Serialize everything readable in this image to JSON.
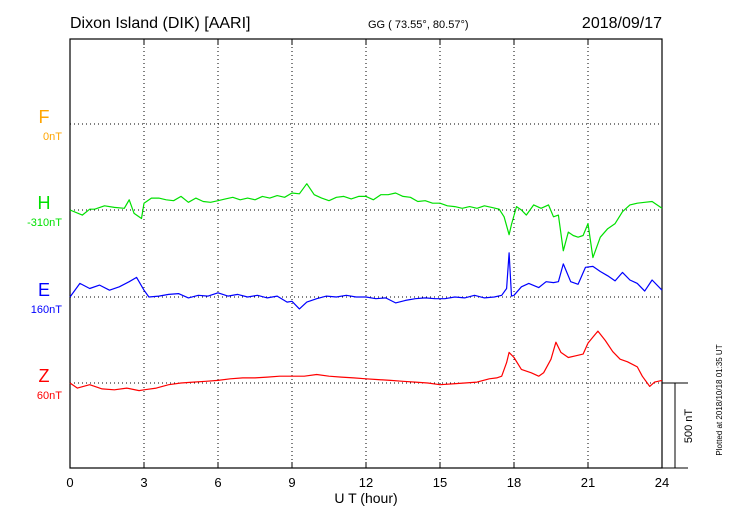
{
  "header": {
    "station": "Dixon Island (DIK)  [AARI]",
    "coords": "GG ( 73.55°,  80.57°)",
    "date": "2018/09/17"
  },
  "footer_note": "Plotted at 2018/10/18 01:35 UT",
  "chart_data": {
    "type": "line",
    "xlabel": "U T (hour)",
    "xlim": [
      0,
      24
    ],
    "xticks": [
      "0",
      "3",
      "6",
      "9",
      "12",
      "15",
      "18",
      "21",
      "24"
    ],
    "grid": true,
    "scale_bar": "500 nT",
    "series": [
      {
        "name": "F",
        "baseline": "0nT",
        "color": "#FFA500",
        "values": []
      },
      {
        "name": "H",
        "baseline": "-310nT",
        "color": "#00E000",
        "x": [
          0,
          0.5,
          0.8,
          1,
          1.4,
          1.8,
          2.2,
          2.4,
          2.6,
          2.9,
          3.0,
          3.3,
          3.6,
          3.9,
          4.2,
          4.5,
          4.8,
          5.1,
          5.4,
          5.7,
          6.0,
          6.3,
          6.6,
          6.9,
          7.2,
          7.5,
          7.8,
          8.1,
          8.4,
          8.7,
          9.0,
          9.3,
          9.6,
          9.9,
          10.2,
          10.5,
          10.8,
          11.1,
          11.4,
          11.7,
          12.0,
          12.3,
          12.6,
          12.9,
          13.2,
          13.5,
          13.8,
          14.1,
          14.4,
          14.7,
          15.0,
          15.3,
          15.6,
          15.9,
          16.2,
          16.5,
          16.8,
          17.1,
          17.4,
          17.6,
          17.8,
          17.9,
          18.1,
          18.3,
          18.5,
          18.8,
          19.1,
          19.4,
          19.6,
          19.8,
          20.0,
          20.2,
          20.4,
          20.6,
          20.8,
          21.0,
          21.2,
          21.5,
          21.8,
          22.1,
          22.4,
          22.7,
          23.0,
          23.3,
          23.6,
          24.0
        ],
        "y": [
          0,
          -30,
          5,
          5,
          25,
          15,
          10,
          60,
          -20,
          -50,
          40,
          70,
          70,
          60,
          55,
          80,
          45,
          70,
          50,
          45,
          55,
          65,
          75,
          60,
          70,
          60,
          80,
          70,
          85,
          75,
          100,
          95,
          155,
          90,
          70,
          55,
          75,
          80,
          65,
          80,
          80,
          60,
          90,
          90,
          100,
          80,
          75,
          50,
          55,
          40,
          40,
          25,
          20,
          10,
          20,
          10,
          25,
          15,
          5,
          -40,
          -145,
          -85,
          20,
          0,
          -30,
          30,
          10,
          30,
          -40,
          -30,
          -240,
          -130,
          -150,
          -160,
          -150,
          -80,
          -280,
          -160,
          -110,
          -80,
          -10,
          30,
          40,
          45,
          50,
          10
        ]
      },
      {
        "name": "E",
        "baseline": "160nT",
        "color": "#0000FF",
        "x": [
          0,
          0.4,
          0.8,
          1.2,
          1.6,
          2.0,
          2.4,
          2.7,
          3.0,
          3.2,
          3.6,
          4.0,
          4.4,
          4.8,
          5.2,
          5.6,
          6.0,
          6.4,
          6.8,
          7.2,
          7.6,
          8.0,
          8.4,
          8.8,
          9.0,
          9.3,
          9.6,
          10.0,
          10.4,
          10.8,
          11.2,
          11.6,
          12.0,
          12.4,
          12.8,
          13.2,
          13.6,
          14.0,
          14.4,
          14.8,
          15.2,
          15.6,
          16.0,
          16.4,
          16.8,
          17.2,
          17.5,
          17.7,
          17.8,
          17.9,
          18.0,
          18.3,
          18.6,
          19.0,
          19.3,
          19.6,
          19.8,
          20.0,
          20.3,
          20.6,
          20.9,
          21.2,
          21.5,
          21.8,
          22.1,
          22.4,
          22.7,
          23.0,
          23.3,
          23.6,
          24.0
        ],
        "y": [
          0,
          80,
          50,
          70,
          40,
          60,
          90,
          115,
          40,
          0,
          5,
          15,
          20,
          -5,
          10,
          5,
          25,
          5,
          15,
          0,
          10,
          -5,
          5,
          -30,
          -25,
          -70,
          -30,
          -10,
          5,
          0,
          10,
          0,
          0,
          -10,
          -5,
          -35,
          -20,
          -10,
          -5,
          -10,
          -10,
          0,
          -5,
          10,
          -5,
          0,
          10,
          50,
          260,
          5,
          10,
          60,
          80,
          55,
          90,
          85,
          90,
          195,
          90,
          75,
          175,
          180,
          150,
          125,
          95,
          145,
          100,
          80,
          35,
          100,
          40
        ]
      },
      {
        "name": "Z",
        "baseline": "60nT",
        "color": "#FF0000",
        "x": [
          0,
          0.3,
          0.8,
          1.3,
          1.8,
          2.3,
          2.8,
          3.0,
          3.5,
          4.0,
          4.5,
          5.0,
          5.5,
          6.0,
          6.5,
          7.0,
          7.5,
          8.0,
          8.5,
          9.0,
          9.5,
          10.0,
          10.5,
          11.0,
          11.5,
          12.0,
          12.5,
          13.0,
          13.5,
          14.0,
          14.5,
          15.0,
          15.5,
          16.0,
          16.5,
          17.0,
          17.3,
          17.5,
          17.7,
          17.8,
          18.0,
          18.3,
          18.7,
          19.0,
          19.2,
          19.5,
          19.7,
          19.9,
          20.2,
          20.5,
          20.8,
          21.0,
          21.2,
          21.4,
          21.7,
          22.0,
          22.3,
          22.6,
          23.0,
          23.2,
          23.5,
          23.7,
          24.0
        ],
        "y": [
          0,
          -30,
          -10,
          -35,
          -40,
          -30,
          -45,
          -40,
          -30,
          -10,
          0,
          5,
          10,
          15,
          25,
          30,
          30,
          35,
          40,
          40,
          40,
          50,
          40,
          35,
          30,
          25,
          20,
          15,
          10,
          5,
          0,
          -10,
          -5,
          0,
          5,
          25,
          30,
          40,
          120,
          180,
          150,
          80,
          60,
          40,
          60,
          140,
          240,
          180,
          150,
          160,
          170,
          235,
          270,
          305,
          250,
          185,
          140,
          125,
          95,
          40,
          -20,
          5,
          15
        ]
      }
    ]
  }
}
